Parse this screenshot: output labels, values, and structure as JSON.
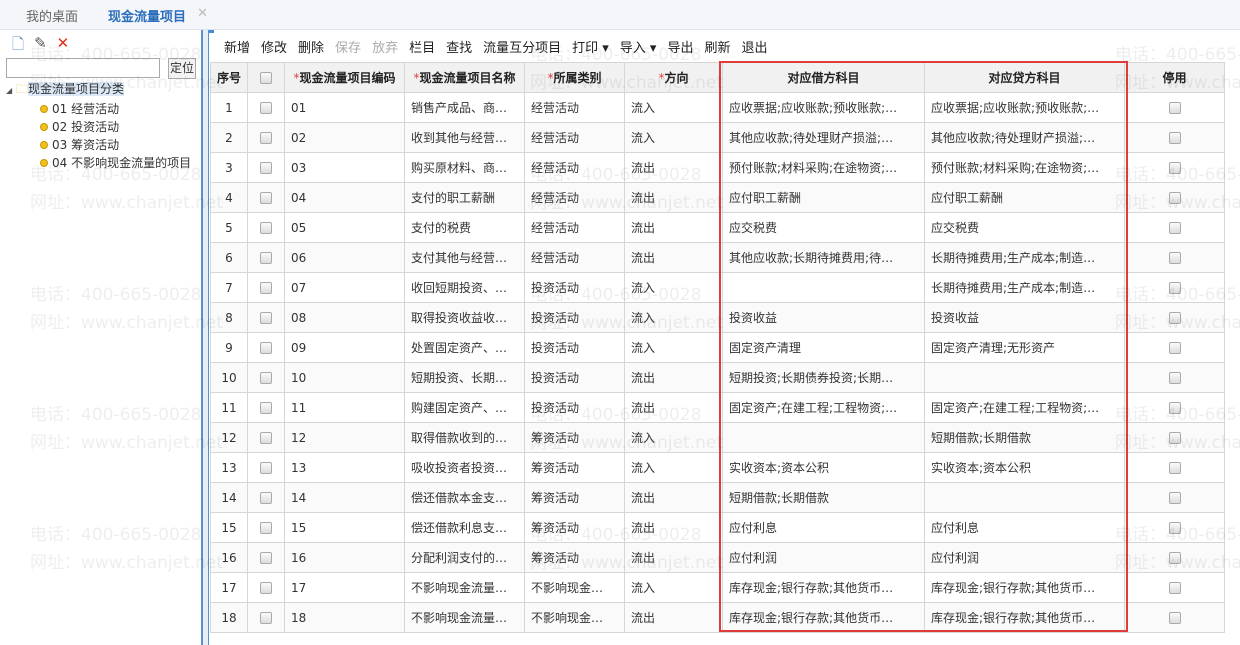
{
  "tabs": [
    {
      "label": "我的桌面"
    },
    {
      "label": "现金流量项目",
      "close": "✕"
    }
  ],
  "left": {
    "tools": [
      "new-icon",
      "edit-icon",
      "delete-icon"
    ],
    "search_value": "",
    "locate_label": "定位",
    "tree": {
      "root": "现金流量项目分类",
      "children": [
        "01 经营活动",
        "02 投资活动",
        "03 筹资活动",
        "04 不影响现金流量的项目"
      ]
    }
  },
  "toolbar": [
    {
      "label": "新增"
    },
    {
      "label": "修改"
    },
    {
      "label": "删除"
    },
    {
      "label": "保存",
      "disabled": true
    },
    {
      "label": "放弃",
      "disabled": true
    },
    {
      "label": "栏目"
    },
    {
      "label": "查找"
    },
    {
      "label": "流量互分项目"
    },
    {
      "label": "打印 ▾"
    },
    {
      "label": "导入 ▾"
    },
    {
      "label": "导出"
    },
    {
      "label": "刷新"
    },
    {
      "label": "退出"
    }
  ],
  "columns": [
    "序号",
    "",
    "现金流量项目编码",
    "现金流量项目名称",
    "所属类别",
    "方向",
    "对应借方科目",
    "对应贷方科目",
    "停用"
  ],
  "rows": [
    [
      "1",
      "01",
      "销售产成品、商…",
      "经营活动",
      "流入",
      "应收票据;应收账款;预收账款;…",
      "应收票据;应收账款;预收账款;…"
    ],
    [
      "2",
      "02",
      "收到其他与经营…",
      "经营活动",
      "流入",
      "其他应收款;待处理财产损溢;…",
      "其他应收款;待处理财产损溢;…"
    ],
    [
      "3",
      "03",
      "购买原材料、商…",
      "经营活动",
      "流出",
      "预付账款;材料采购;在途物资;…",
      "预付账款;材料采购;在途物资;…"
    ],
    [
      "4",
      "04",
      "支付的职工薪酬",
      "经营活动",
      "流出",
      "应付职工薪酬",
      "应付职工薪酬"
    ],
    [
      "5",
      "05",
      "支付的税费",
      "经营活动",
      "流出",
      "应交税费",
      "应交税费"
    ],
    [
      "6",
      "06",
      "支付其他与经营…",
      "经营活动",
      "流出",
      "其他应收款;长期待摊费用;待…",
      "长期待摊费用;生产成本;制造…"
    ],
    [
      "7",
      "07",
      "收回短期投资、…",
      "投资活动",
      "流入",
      "",
      "长期待摊费用;生产成本;制造…"
    ],
    [
      "8",
      "08",
      "取得投资收益收…",
      "投资活动",
      "流入",
      "投资收益",
      "投资收益"
    ],
    [
      "9",
      "09",
      "处置固定资产、…",
      "投资活动",
      "流入",
      "固定资产清理",
      "固定资产清理;无形资产"
    ],
    [
      "10",
      "10",
      "短期投资、长期…",
      "投资活动",
      "流出",
      "短期投资;长期债券投资;长期…",
      ""
    ],
    [
      "11",
      "11",
      "购建固定资产、…",
      "投资活动",
      "流出",
      "固定资产;在建工程;工程物资;…",
      "固定资产;在建工程;工程物资;…"
    ],
    [
      "12",
      "12",
      "取得借款收到的…",
      "筹资活动",
      "流入",
      "",
      "短期借款;长期借款"
    ],
    [
      "13",
      "13",
      "吸收投资者投资…",
      "筹资活动",
      "流入",
      "实收资本;资本公积",
      "实收资本;资本公积"
    ],
    [
      "14",
      "14",
      "偿还借款本金支…",
      "筹资活动",
      "流出",
      "短期借款;长期借款",
      ""
    ],
    [
      "15",
      "15",
      "偿还借款利息支…",
      "筹资活动",
      "流出",
      "应付利息",
      "应付利息"
    ],
    [
      "16",
      "16",
      "分配利润支付的…",
      "筹资活动",
      "流出",
      "应付利润",
      "应付利润"
    ],
    [
      "17",
      "17",
      "不影响现金流量…",
      "不影响现金…",
      "流入",
      "库存现金;银行存款;其他货币…",
      "库存现金;银行存款;其他货币…"
    ],
    [
      "18",
      "18",
      "不影响现金流量…",
      "不影响现金…",
      "流出",
      "库存现金;银行存款;其他货币…",
      "库存现金;银行存款;其他货币…"
    ]
  ],
  "watermark": {
    "phone": "电话：400-665-0028",
    "site": "网址：www.chanjet.net"
  },
  "colors": {
    "accent": "#2a6ebb",
    "highlight": "#e03c3c"
  }
}
